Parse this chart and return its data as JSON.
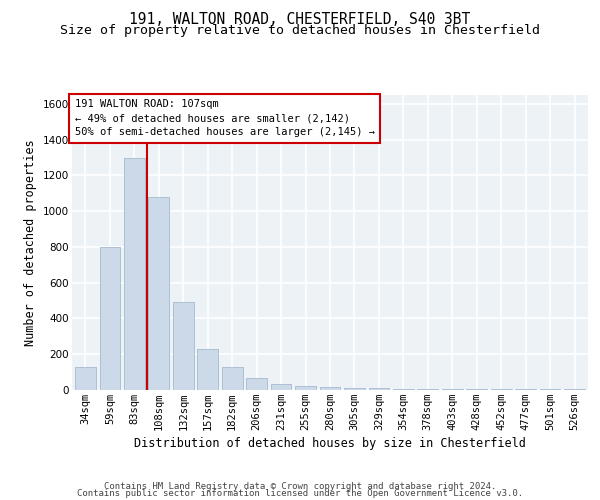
{
  "title1": "191, WALTON ROAD, CHESTERFIELD, S40 3BT",
  "title2": "Size of property relative to detached houses in Chesterfield",
  "xlabel": "Distribution of detached houses by size in Chesterfield",
  "ylabel": "Number of detached properties",
  "categories": [
    "34sqm",
    "59sqm",
    "83sqm",
    "108sqm",
    "132sqm",
    "157sqm",
    "182sqm",
    "206sqm",
    "231sqm",
    "255sqm",
    "280sqm",
    "305sqm",
    "329sqm",
    "354sqm",
    "378sqm",
    "403sqm",
    "428sqm",
    "452sqm",
    "477sqm",
    "501sqm",
    "526sqm"
  ],
  "values": [
    130,
    800,
    1300,
    1080,
    490,
    230,
    130,
    65,
    35,
    25,
    15,
    12,
    10,
    8,
    8,
    7,
    7,
    7,
    7,
    7,
    7
  ],
  "bar_color": "#ccd9e8",
  "bar_edge_color": "#9ab0c8",
  "vline_color": "#cc0000",
  "annotation_line1": "191 WALTON ROAD: 107sqm",
  "annotation_line2": "← 49% of detached houses are smaller (2,142)",
  "annotation_line3": "50% of semi-detached houses are larger (2,145) →",
  "annotation_box_facecolor": "#ffffff",
  "annotation_box_edgecolor": "#cc0000",
  "ylim": [
    0,
    1650
  ],
  "yticks": [
    0,
    200,
    400,
    600,
    800,
    1000,
    1200,
    1400,
    1600
  ],
  "footer1": "Contains HM Land Registry data © Crown copyright and database right 2024.",
  "footer2": "Contains public sector information licensed under the Open Government Licence v3.0.",
  "plot_bg": "#edf2f7",
  "title_fontsize": 10.5,
  "subtitle_fontsize": 9.5,
  "tick_fontsize": 7.5,
  "label_fontsize": 8.5,
  "footer_fontsize": 6.5,
  "annot_fontsize": 7.5
}
